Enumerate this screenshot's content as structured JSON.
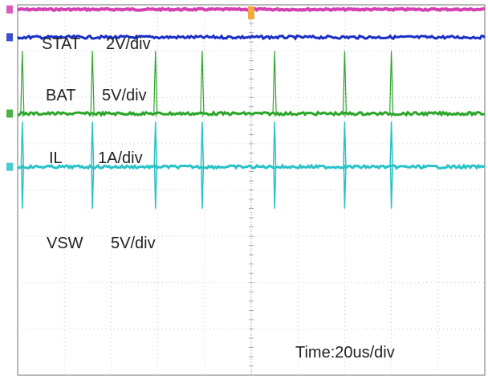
{
  "chart_data": {
    "type": "line",
    "title": "",
    "channels": [
      {
        "key": "stat",
        "name": "STAT",
        "scale": "2V/div",
        "color": "#d43fb1",
        "baseline_div": 0.1
      },
      {
        "key": "bat",
        "name": "BAT",
        "scale": "5V/div",
        "color": "#1a2fc4",
        "baseline_div": 0.7
      },
      {
        "key": "il",
        "name": "IL",
        "scale": "1A/div",
        "color": "#2aa628",
        "baseline_div": 2.35,
        "spikes_us": [
          2,
          32,
          59,
          79,
          110,
          140,
          160
        ]
      },
      {
        "key": "vsw",
        "name": "VSW",
        "scale": "5V/div",
        "color": "#29c2c8",
        "baseline_div": 3.5,
        "spikes_us": [
          2,
          32,
          59,
          79,
          110,
          140,
          160
        ]
      }
    ],
    "timebase": "Time:20us/div",
    "x_divisions": 10,
    "y_divisions": 8,
    "grid": true
  }
}
